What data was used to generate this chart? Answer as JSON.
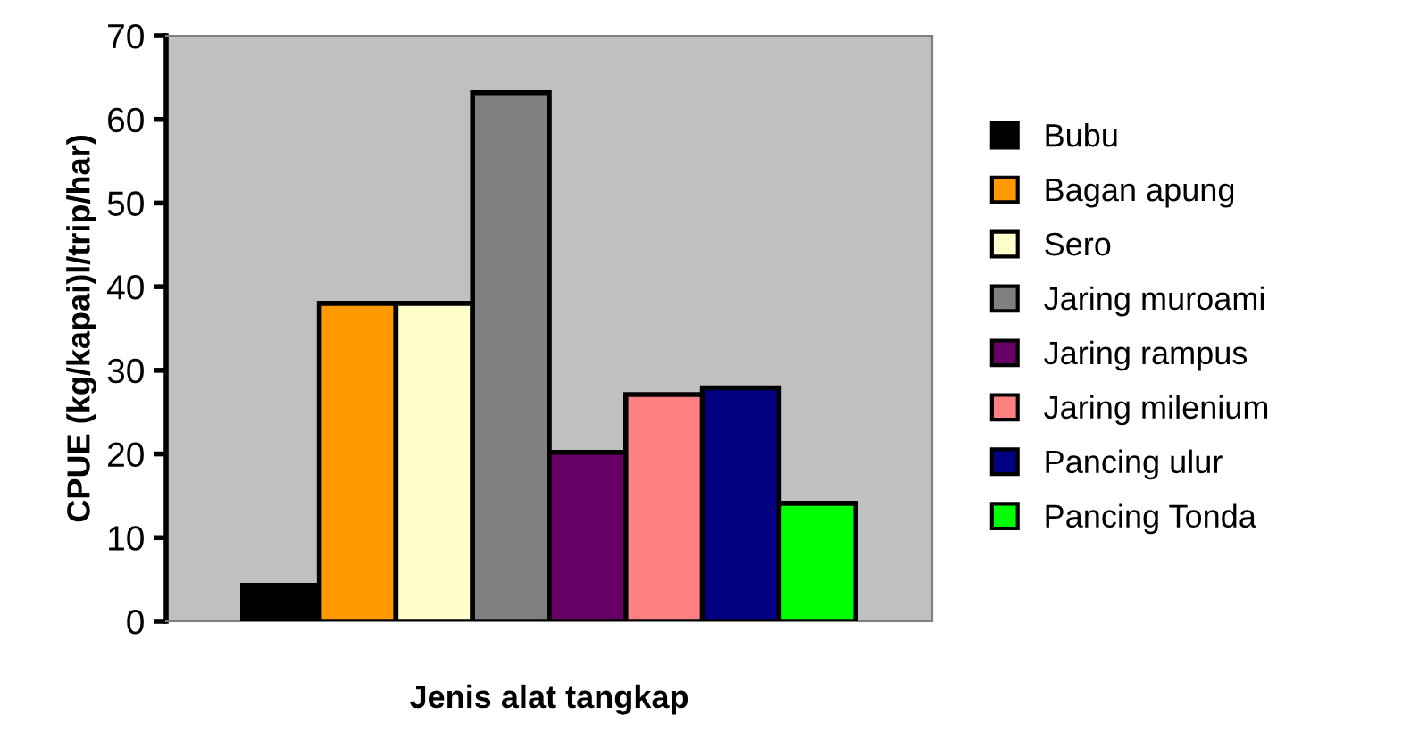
{
  "chart_data": {
    "type": "bar",
    "xlabel": "Jenis alat tangkap",
    "ylabel": "CPUE (kg/kapai)l/trip/har)",
    "categories": [
      null
    ],
    "series": [
      {
        "name": "Bubu",
        "color": "#000000",
        "values": [
          4.3
        ]
      },
      {
        "name": "Bagan apung",
        "color": "#ff9900",
        "values": [
          38
        ]
      },
      {
        "name": "Sero",
        "color": "#ffffcc",
        "values": [
          38
        ]
      },
      {
        "name": "Jaring muroami",
        "color": "#808080",
        "values": [
          63.2
        ]
      },
      {
        "name": "Jaring rampus",
        "color": "#660066",
        "values": [
          20.2
        ]
      },
      {
        "name": "Jaring milenium",
        "color": "#ff8080",
        "values": [
          27.1
        ]
      },
      {
        "name": "Pancing ulur",
        "color": "#000080",
        "values": [
          27.9
        ]
      },
      {
        "name": "Pancing Tonda",
        "color": "#00ff00",
        "values": [
          14.1
        ]
      }
    ],
    "ylim": [
      0,
      70
    ],
    "yticks": [
      0,
      10,
      20,
      30,
      40,
      50,
      60,
      70
    ],
    "grid": false,
    "legend": "right"
  }
}
